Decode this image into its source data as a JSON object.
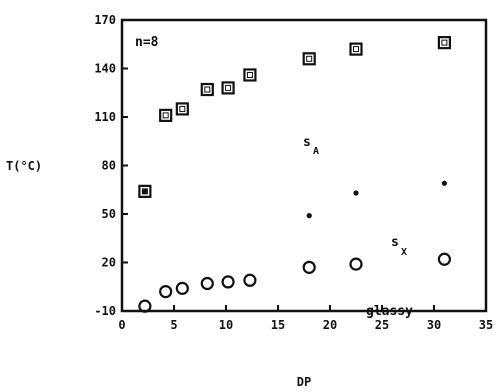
{
  "chart_data": {
    "type": "scatter",
    "xlabel": "DP",
    "ylabel": "T(°C)",
    "xlim": [
      0,
      35
    ],
    "ylim": [
      -10,
      170
    ],
    "xticks": [
      0,
      5,
      10,
      15,
      20,
      25,
      30,
      35
    ],
    "yticks": [
      -10,
      20,
      50,
      80,
      110,
      140,
      170
    ],
    "annotations": {
      "n_label": "n=8",
      "sA_main": "s",
      "sA_sub": "A",
      "sX_main": "s",
      "sX_sub": "X",
      "glassy": "glassy"
    },
    "series": [
      {
        "marker": "square",
        "x": [
          2.2,
          4.2,
          5.8,
          8.2,
          10.2,
          12.3,
          18.0,
          22.5,
          31.0
        ],
        "y": [
          64,
          111,
          115,
          127,
          128,
          136,
          146,
          152,
          156
        ]
      },
      {
        "marker": "dot",
        "x": [
          2.2,
          18.0,
          22.5,
          31.0
        ],
        "y": [
          64,
          49,
          63,
          69
        ]
      },
      {
        "marker": "circle",
        "x": [
          2.2,
          4.2,
          5.8,
          8.2,
          10.2,
          12.3,
          18.0,
          22.5,
          31.0
        ],
        "y": [
          -7,
          2,
          4,
          7,
          8,
          9,
          17,
          19,
          22
        ]
      }
    ]
  }
}
